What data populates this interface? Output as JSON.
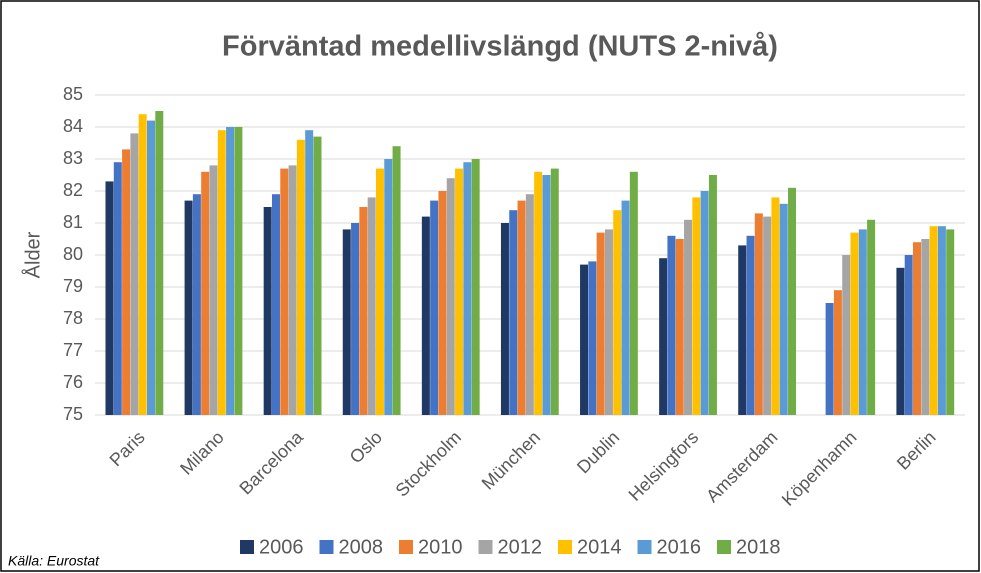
{
  "chart_data": {
    "type": "bar",
    "title": "Förväntad medellivslängd (NUTS 2-nivå)",
    "y_label": "Ålder",
    "source": "Källa: Eurostat",
    "categories": [
      "Paris",
      "Milano",
      "Barcelona",
      "Oslo",
      "Stockholm",
      "München",
      "Dublin",
      "Helsingfors",
      "Amsterdam",
      "Köpenhamn",
      "Berlin"
    ],
    "series": [
      {
        "name": "2006",
        "color": "#203864",
        "values": [
          82.3,
          81.7,
          81.5,
          80.8,
          81.2,
          81.0,
          79.7,
          79.9,
          80.3,
          null,
          79.6
        ]
      },
      {
        "name": "2008",
        "color": "#4472c4",
        "values": [
          82.9,
          81.9,
          81.9,
          81.0,
          81.7,
          81.4,
          79.8,
          80.6,
          80.6,
          78.5,
          80.0
        ]
      },
      {
        "name": "2010",
        "color": "#ed7d31",
        "values": [
          83.3,
          82.6,
          82.7,
          81.5,
          82.0,
          81.7,
          80.7,
          80.5,
          81.3,
          78.9,
          80.4
        ]
      },
      {
        "name": "2012",
        "color": "#a5a5a5",
        "values": [
          83.8,
          82.8,
          82.8,
          81.8,
          82.4,
          81.9,
          80.8,
          81.1,
          81.2,
          80.0,
          80.5
        ]
      },
      {
        "name": "2014",
        "color": "#ffc000",
        "values": [
          84.4,
          83.9,
          83.6,
          82.7,
          82.7,
          82.6,
          81.4,
          81.8,
          81.8,
          80.7,
          80.9
        ]
      },
      {
        "name": "2016",
        "color": "#5b9bd5",
        "values": [
          84.2,
          84.0,
          83.9,
          83.0,
          82.9,
          82.5,
          81.7,
          82.0,
          81.6,
          80.8,
          80.9
        ]
      },
      {
        "name": "2018",
        "color": "#70ad47",
        "values": [
          84.5,
          84.0,
          83.7,
          83.4,
          83.0,
          82.7,
          82.6,
          82.5,
          82.1,
          81.1,
          80.8
        ]
      }
    ],
    "ylim": [
      75,
      85
    ],
    "yticks": [
      75,
      76,
      77,
      78,
      79,
      80,
      81,
      82,
      83,
      84,
      85
    ],
    "grid": true,
    "legend": "bottom"
  }
}
